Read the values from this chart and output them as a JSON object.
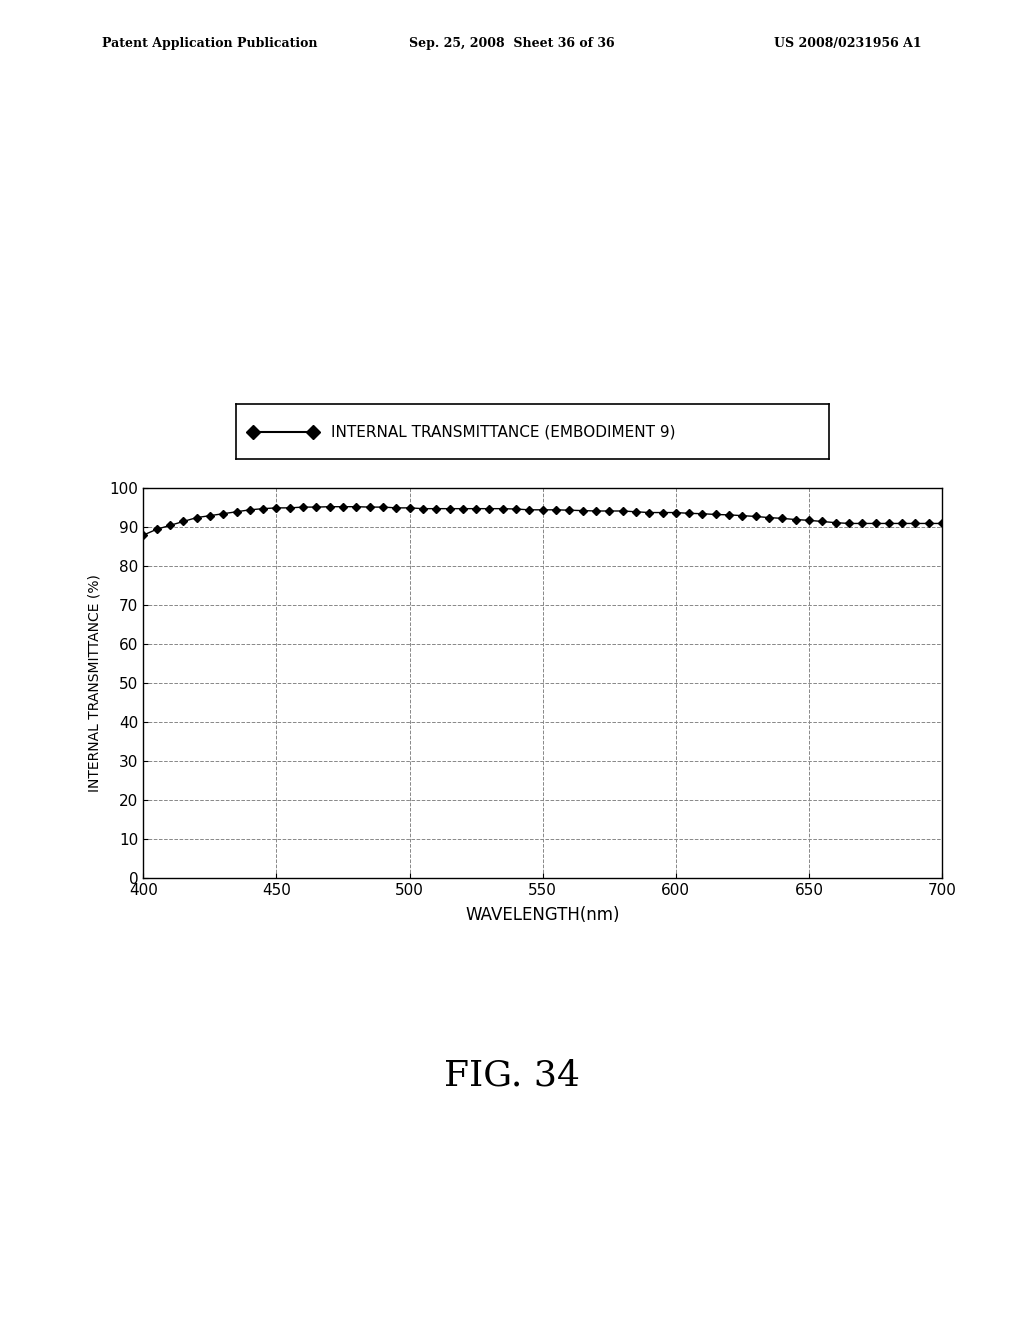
{
  "title_header_left": "Patent Application Publication",
  "title_header_mid": "Sep. 25, 2008  Sheet 36 of 36",
  "title_header_right": "US 2008/0231956 A1",
  "figure_label": "FIG. 34",
  "legend_label": "INTERNAL TRANSMITTANCE (EMBODIMENT 9)",
  "xlabel": "WAVELENGTH(nm)",
  "ylabel": "INTERNAL TRANSMITTANCE (%)",
  "xlim": [
    400,
    700
  ],
  "ylim": [
    0,
    100
  ],
  "xticks": [
    400,
    450,
    500,
    550,
    600,
    650,
    700
  ],
  "yticks": [
    0,
    10,
    20,
    30,
    40,
    50,
    60,
    70,
    80,
    90,
    100
  ],
  "wavelengths": [
    400,
    405,
    410,
    415,
    420,
    425,
    430,
    435,
    440,
    445,
    450,
    455,
    460,
    465,
    470,
    475,
    480,
    485,
    490,
    495,
    500,
    505,
    510,
    515,
    520,
    525,
    530,
    535,
    540,
    545,
    550,
    555,
    560,
    565,
    570,
    575,
    580,
    585,
    590,
    595,
    600,
    605,
    610,
    615,
    620,
    625,
    630,
    635,
    640,
    645,
    650,
    655,
    660,
    665,
    670,
    675,
    680,
    685,
    690,
    695,
    700
  ],
  "transmittance": [
    88.0,
    89.5,
    90.5,
    91.5,
    92.5,
    93.0,
    93.5,
    94.0,
    94.5,
    94.8,
    95.0,
    95.0,
    95.2,
    95.2,
    95.3,
    95.3,
    95.3,
    95.2,
    95.2,
    95.0,
    95.0,
    94.8,
    94.8,
    94.8,
    94.8,
    94.8,
    94.8,
    94.8,
    94.7,
    94.5,
    94.5,
    94.5,
    94.4,
    94.3,
    94.2,
    94.2,
    94.2,
    94.0,
    93.8,
    93.8,
    93.8,
    93.6,
    93.5,
    93.3,
    93.2,
    93.0,
    92.8,
    92.5,
    92.3,
    92.0,
    91.8,
    91.5,
    91.2,
    91.0,
    91.0,
    91.0,
    91.0,
    91.0,
    91.0,
    91.0,
    91.0
  ],
  "line_color": "#000000",
  "marker": "D",
  "marker_size": 4,
  "background_color": "#ffffff",
  "grid_color": "#888888",
  "grid_style": "--"
}
